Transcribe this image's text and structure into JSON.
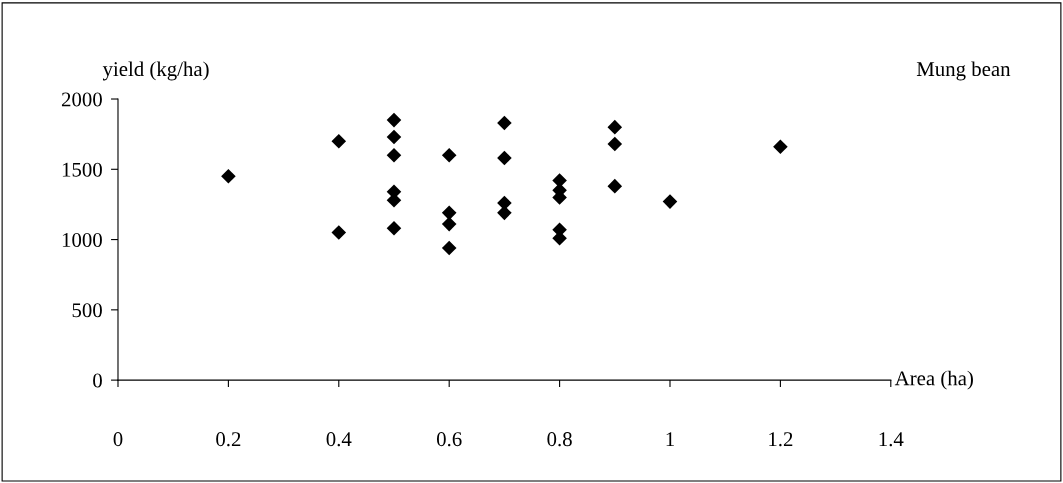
{
  "chart_data": {
    "type": "scatter",
    "xlabel": "Area (ha)",
    "ylabel": "yield (kg/ha)",
    "annotations": [
      "Mung bean"
    ],
    "series": [
      {
        "color": "#000000",
        "x": [
          0.2,
          0.4,
          0.4,
          0.5,
          0.5,
          0.5,
          0.5,
          0.5,
          0.5,
          0.6,
          0.6,
          0.6,
          0.6,
          0.7,
          0.7,
          0.7,
          0.7,
          0.8,
          0.8,
          0.8,
          0.8,
          0.8,
          0.9,
          0.9,
          0.9,
          1.0,
          1.2
        ],
        "values": [
          1450,
          1700,
          1050,
          1850,
          1730,
          1600,
          1340,
          1280,
          1080,
          1600,
          1190,
          1110,
          940,
          1830,
          1580,
          1260,
          1190,
          1420,
          1350,
          1300,
          1070,
          1010,
          1800,
          1680,
          1380,
          1270,
          1660
        ]
      }
    ],
    "marker": "diamond",
    "xlim": [
      0,
      1.4
    ],
    "ylim": [
      0,
      2000
    ],
    "xticks": [
      0,
      0.2,
      0.4,
      0.6,
      0.8,
      1,
      1.2,
      1.4
    ],
    "yticks": [
      0,
      500,
      1000,
      1500,
      2000
    ],
    "grid": false,
    "legend": false
  }
}
